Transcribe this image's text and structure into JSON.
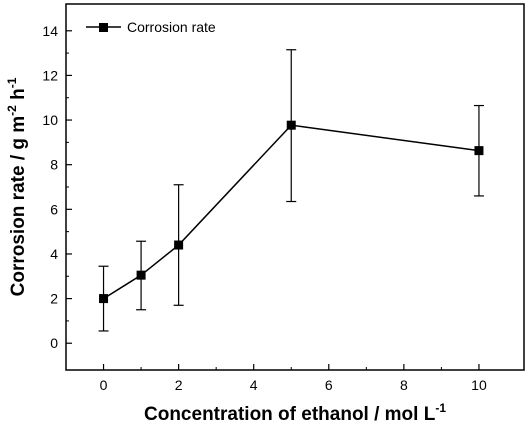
{
  "chart_data": {
    "type": "line",
    "x": [
      0,
      1,
      2,
      5,
      10
    ],
    "series": [
      {
        "name": "Corrosion rate",
        "values": [
          2.0,
          3.05,
          4.4,
          9.77,
          8.63
        ],
        "error_upper": [
          3.45,
          4.57,
          7.1,
          13.15,
          10.65
        ],
        "error_lower": [
          0.55,
          1.5,
          1.7,
          6.35,
          6.6
        ],
        "marker": "square",
        "color": "#000000"
      }
    ],
    "xlabel_main": "Concentration of ethanol / mol L",
    "xlabel_sup": "-1",
    "ylabel_parts": [
      "Corrosion rate / g m",
      "-2",
      " h",
      "-1"
    ],
    "xticks": [
      0,
      2,
      4,
      6,
      8,
      10
    ],
    "yticks": [
      0,
      2,
      4,
      6,
      8,
      10,
      12,
      14
    ],
    "xlim": [
      -1.0,
      11.2
    ],
    "ylim": [
      -1.2,
      15.2
    ],
    "grid": false,
    "legend_position": "top-left"
  }
}
